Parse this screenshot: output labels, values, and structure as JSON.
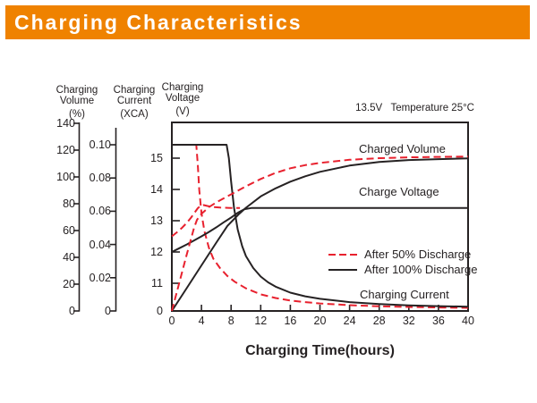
{
  "header": {
    "title": "Charging Characteristics",
    "bg_color": "#ef8200",
    "text_color": "#ffffff"
  },
  "chart_data": {
    "type": "line",
    "title": "Charging Characteristics",
    "condition_label": "13.5V   Temperature 25°C",
    "xlabel": "Charging Time(hours)",
    "x_range": [
      0,
      40
    ],
    "x_ticks": [
      0,
      4,
      8,
      12,
      16,
      20,
      24,
      28,
      32,
      36,
      40
    ],
    "grid": false,
    "legend_position": "inside-right",
    "colors": {
      "line_black": "#262223",
      "line_red": "#e8212e"
    },
    "axes": {
      "volume": {
        "title_line1": "Charging",
        "title_line2": "Volume",
        "unit": "(%)",
        "range": [
          0,
          140
        ],
        "ticks": [
          0,
          20,
          40,
          60,
          80,
          100,
          120,
          140
        ]
      },
      "current": {
        "title_line1": "Charging",
        "title_line2": "Current",
        "unit": "(XCA)",
        "range": [
          0,
          0.1
        ],
        "ticks": [
          0,
          0.02,
          0.04,
          0.06,
          0.08,
          0.1
        ],
        "tick_labels": [
          "0",
          "0.02",
          "0.04",
          "0.06",
          "0.08",
          "0.10"
        ]
      },
      "voltage": {
        "title_line1": "Charging",
        "title_line2": "Voltage",
        "unit": "(V)",
        "range": [
          11,
          15
        ],
        "ticks": [
          0,
          11,
          12,
          13,
          14,
          15
        ],
        "tick_labels": [
          "0",
          "11",
          "12",
          "13",
          "14",
          "15"
        ]
      }
    },
    "curve_labels": {
      "charged_volume": "Charged Volume",
      "charge_voltage": "Charge Voltage",
      "charging_current": "Charging Current"
    },
    "legend": [
      {
        "label": "After 50% Discharge",
        "style": "dashed",
        "color": "#e8212e"
      },
      {
        "label": "After 100% Discharge",
        "style": "solid",
        "color": "#262223"
      }
    ],
    "series": [
      {
        "name": "charging-current-after-50pct-discharge",
        "axis": "current",
        "style": "dashed",
        "color": "#e8212e",
        "points": [
          [
            0,
            0.1
          ],
          [
            3.3,
            0.1
          ],
          [
            3.5,
            0.088
          ],
          [
            3.7,
            0.073
          ],
          [
            4.0,
            0.059
          ],
          [
            4.4,
            0.048
          ],
          [
            5.0,
            0.038
          ],
          [
            5.6,
            0.0315
          ],
          [
            6.5,
            0.0258
          ],
          [
            7.5,
            0.021
          ],
          [
            8.5,
            0.0176
          ],
          [
            10,
            0.0136
          ],
          [
            12,
            0.01
          ],
          [
            14,
            0.0078
          ],
          [
            16,
            0.0063
          ],
          [
            18,
            0.0053
          ],
          [
            20,
            0.0045
          ],
          [
            24,
            0.0035
          ],
          [
            28,
            0.0028
          ],
          [
            32,
            0.0024
          ],
          [
            36,
            0.0021
          ],
          [
            40,
            0.0019
          ]
        ]
      },
      {
        "name": "charging-current-after-100pct-discharge",
        "axis": "current",
        "style": "solid",
        "color": "#262223",
        "points": [
          [
            0,
            0.1
          ],
          [
            7.4,
            0.1
          ],
          [
            7.7,
            0.092
          ],
          [
            8.0,
            0.078
          ],
          [
            8.4,
            0.062
          ],
          [
            8.9,
            0.049
          ],
          [
            9.5,
            0.039
          ],
          [
            10,
            0.033
          ],
          [
            11,
            0.0258
          ],
          [
            12,
            0.0207
          ],
          [
            13,
            0.0172
          ],
          [
            14,
            0.0146
          ],
          [
            16,
            0.011
          ],
          [
            18,
            0.0088
          ],
          [
            20,
            0.0073
          ],
          [
            24,
            0.0053
          ],
          [
            28,
            0.0042
          ],
          [
            32,
            0.0034
          ],
          [
            36,
            0.0029
          ],
          [
            40,
            0.0026
          ]
        ]
      },
      {
        "name": "charge-voltage-after-100pct-discharge",
        "axis": "voltage",
        "style": "solid",
        "color": "#262223",
        "points": [
          [
            0,
            12.0
          ],
          [
            1,
            12.12
          ],
          [
            2,
            12.24
          ],
          [
            3,
            12.37
          ],
          [
            4,
            12.5
          ],
          [
            5,
            12.64
          ],
          [
            6,
            12.79
          ],
          [
            7,
            12.95
          ],
          [
            8,
            13.1
          ],
          [
            9,
            13.27
          ],
          [
            9.8,
            13.37
          ],
          [
            10.8,
            13.41
          ],
          [
            40,
            13.41
          ]
        ]
      },
      {
        "name": "charged-volume-after-100pct-discharge",
        "axis": "volume",
        "style": "solid",
        "color": "#262223",
        "points": [
          [
            0,
            0
          ],
          [
            2,
            17
          ],
          [
            4,
            34
          ],
          [
            6,
            51
          ],
          [
            7.5,
            63.5
          ],
          [
            9,
            72
          ],
          [
            10,
            77
          ],
          [
            12,
            85.5
          ],
          [
            14,
            91.5
          ],
          [
            16,
            96.5
          ],
          [
            18,
            100.5
          ],
          [
            20,
            103.8
          ],
          [
            24,
            108.5
          ],
          [
            28,
            111.2
          ],
          [
            32,
            112.6
          ],
          [
            36,
            113.3
          ],
          [
            40,
            113.8
          ]
        ]
      },
      {
        "name": "charged-volume-after-50pct-discharge",
        "axis": "volume",
        "style": "dashed",
        "color": "#e8212e",
        "points": [
          [
            0,
            0
          ],
          [
            1,
            21
          ],
          [
            2,
            42
          ],
          [
            3,
            62
          ],
          [
            3.4,
            68
          ],
          [
            4,
            72.5
          ],
          [
            5,
            77.5
          ],
          [
            6,
            81
          ],
          [
            7,
            84
          ],
          [
            8,
            87
          ],
          [
            9,
            90
          ],
          [
            10,
            93
          ],
          [
            12,
            98.5
          ],
          [
            14,
            103
          ],
          [
            16,
            106.5
          ],
          [
            18,
            108.8
          ],
          [
            20,
            110.5
          ],
          [
            24,
            112.8
          ],
          [
            28,
            114
          ],
          [
            32,
            114.6
          ],
          [
            36,
            114.9
          ],
          [
            40,
            115.2
          ]
        ]
      },
      {
        "name": "charge-voltage-after-50pct-discharge",
        "axis": "voltage",
        "style": "dashed",
        "color": "#e8212e",
        "points": [
          [
            0,
            12.5
          ],
          [
            0.7,
            12.63
          ],
          [
            1.4,
            12.78
          ],
          [
            2.0,
            12.93
          ],
          [
            2.6,
            13.1
          ],
          [
            3.1,
            13.27
          ],
          [
            3.5,
            13.4
          ],
          [
            3.9,
            13.48
          ],
          [
            4.3,
            13.5
          ],
          [
            4.8,
            13.47
          ],
          [
            5.5,
            13.44
          ],
          [
            6.5,
            13.42
          ],
          [
            8,
            13.41
          ],
          [
            9.2,
            13.41
          ]
        ]
      }
    ]
  }
}
